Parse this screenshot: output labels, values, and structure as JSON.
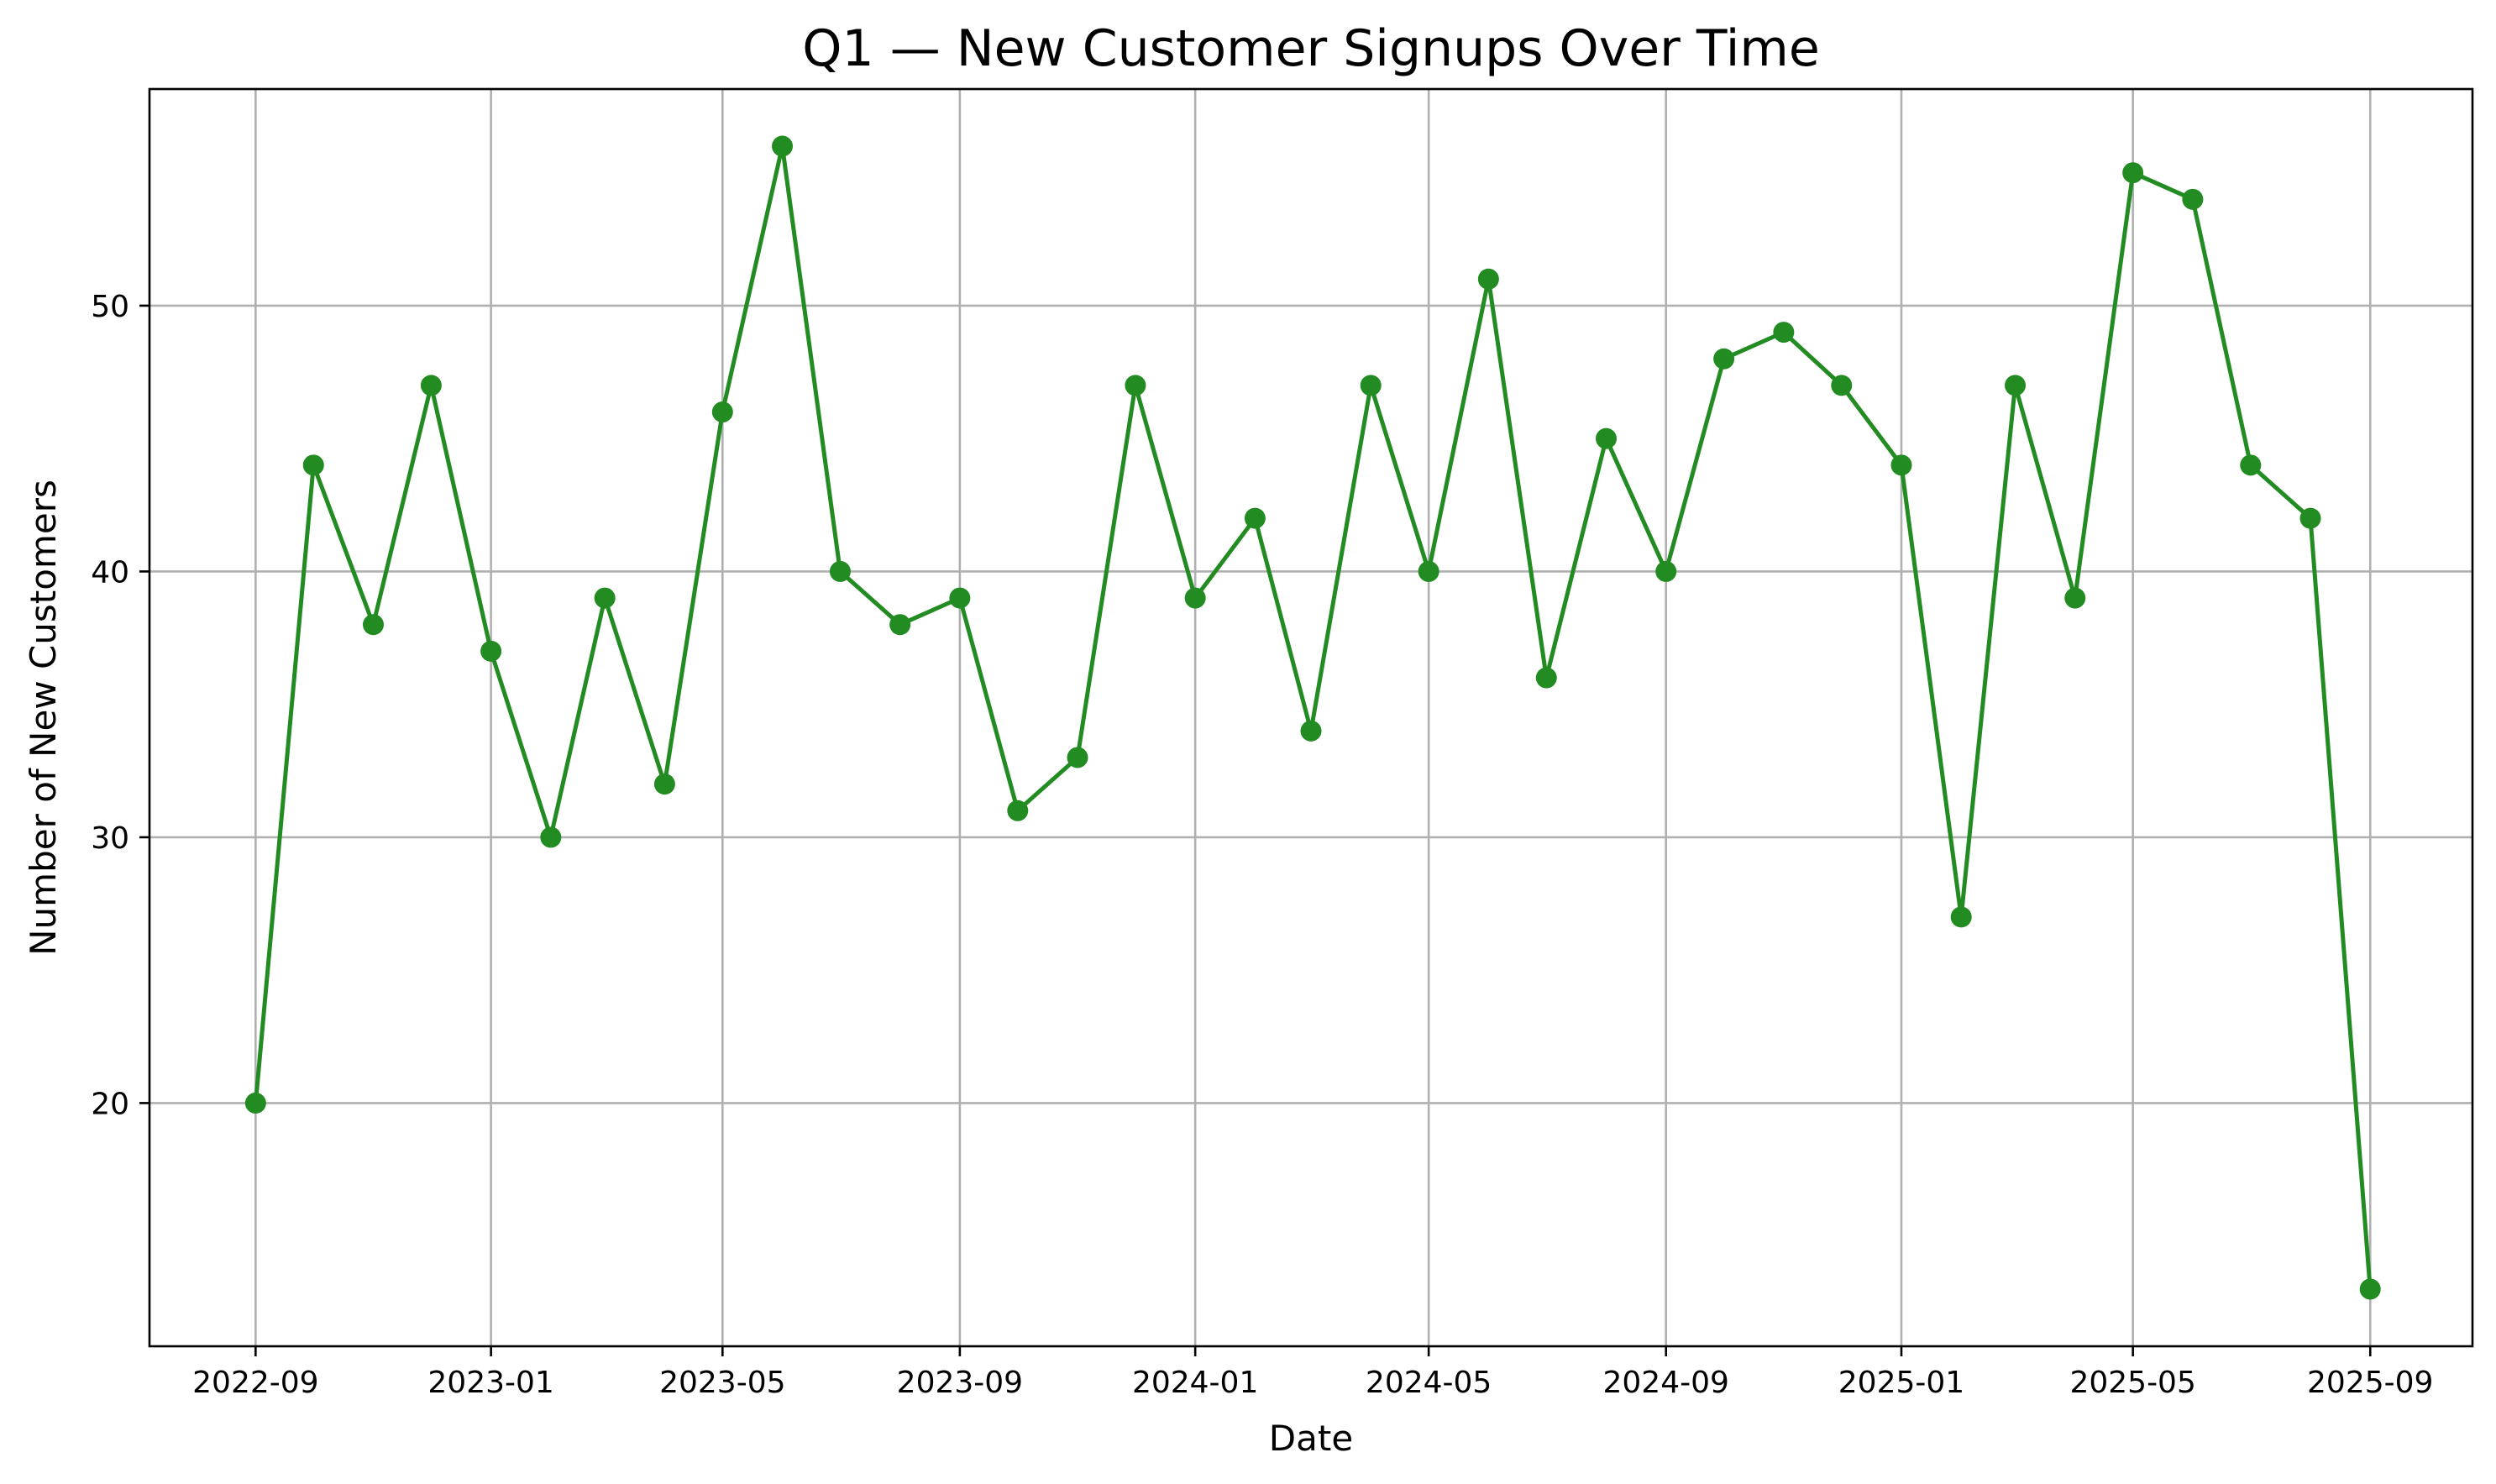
{
  "chart_data": {
    "type": "line",
    "title": "Q1 — New Customer Signups Over Time",
    "xlabel": "Date",
    "ylabel": "Number of New Customers",
    "x": [
      "2022-09",
      "2022-10",
      "2022-11",
      "2022-12",
      "2023-01",
      "2023-02",
      "2023-03",
      "2023-04",
      "2023-05",
      "2023-06",
      "2023-07",
      "2023-08",
      "2023-09",
      "2023-10",
      "2023-11",
      "2023-12",
      "2024-01",
      "2024-02",
      "2024-03",
      "2024-04",
      "2024-05",
      "2024-06",
      "2024-07",
      "2024-08",
      "2024-09",
      "2024-10",
      "2024-11",
      "2024-12",
      "2025-01",
      "2025-02",
      "2025-03",
      "2025-04",
      "2025-05",
      "2025-06",
      "2025-07",
      "2025-08",
      "2025-09"
    ],
    "series": [
      {
        "values": [
          20,
          44,
          38,
          47,
          37,
          30,
          39,
          32,
          46,
          56,
          40,
          38,
          39,
          31,
          33,
          47,
          39,
          42,
          34,
          47,
          40,
          51,
          36,
          45,
          40,
          48,
          49,
          47,
          44,
          27,
          47,
          39,
          55,
          54,
          44,
          42,
          13
        ],
        "color": "#228b22",
        "marker": "circle"
      }
    ],
    "x_ticks": [
      "2022-09",
      "2023-01",
      "2023-05",
      "2023-09",
      "2024-01",
      "2024-05",
      "2024-09",
      "2025-01",
      "2025-05",
      "2025-09"
    ],
    "y_ticks": [
      20,
      30,
      40,
      50
    ],
    "xlim": [
      "2022-07-08",
      "2025-10-24"
    ],
    "ylim": [
      10.85,
      58.15
    ],
    "grid": true,
    "legend": "none"
  }
}
